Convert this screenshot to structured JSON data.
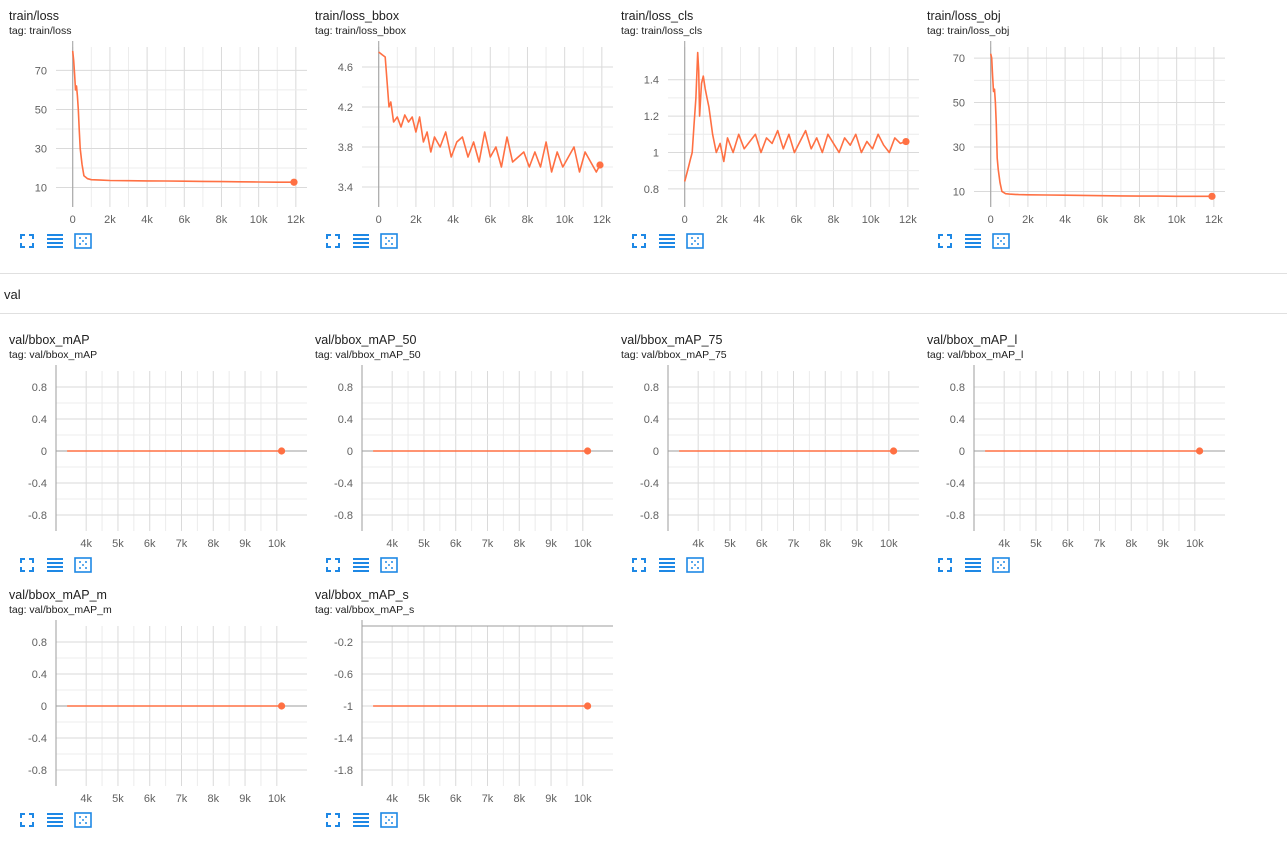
{
  "accent": "#ff7043",
  "toolbar_icons": [
    "fullscreen-icon",
    "data-table-icon",
    "fit-domain-icon"
  ],
  "groups": [
    {
      "title": "val"
    }
  ],
  "chart_data": [
    {
      "type": "line",
      "title": "train/loss",
      "tag": "tag: train/loss",
      "xlim": [
        -900,
        12600
      ],
      "ylim": [
        0,
        82
      ],
      "xticks": [
        0,
        2000,
        4000,
        6000,
        8000,
        10000,
        12000
      ],
      "xtick_labels": [
        "0",
        "2k",
        "4k",
        "6k",
        "8k",
        "10k",
        "12k"
      ],
      "yticks": [
        10,
        30,
        50,
        70
      ],
      "ytick_labels": [
        "10",
        "30",
        "50",
        "70"
      ],
      "grid": true,
      "legend": "none",
      "series": [
        {
          "x": [
            0,
            50,
            100,
            150,
            200,
            250,
            300,
            350,
            400,
            500,
            600,
            800,
            1000,
            1500,
            2000,
            3000,
            4000,
            5000,
            6000,
            7000,
            8000,
            9000,
            10000,
            11000,
            11500,
            11900
          ],
          "y": [
            80,
            75,
            68,
            60,
            62,
            57,
            50,
            40,
            30,
            22,
            16,
            14.5,
            14,
            13.8,
            13.6,
            13.5,
            13.4,
            13.3,
            13.2,
            13.1,
            13,
            12.9,
            12.8,
            12.7,
            12.7,
            12.7
          ],
          "last": [
            11900,
            12.7
          ]
        }
      ]
    },
    {
      "type": "line",
      "title": "train/loss_bbox",
      "tag": "tag: train/loss_bbox",
      "xlim": [
        -900,
        12600
      ],
      "ylim": [
        3.2,
        4.8
      ],
      "xticks": [
        0,
        2000,
        4000,
        6000,
        8000,
        10000,
        12000
      ],
      "xtick_labels": [
        "0",
        "2k",
        "4k",
        "6k",
        "8k",
        "10k",
        "12k"
      ],
      "yticks": [
        3.4,
        3.8,
        4.2,
        4.6
      ],
      "ytick_labels": [
        "3.4",
        "3.8",
        "4.2",
        "4.6"
      ],
      "grid": true,
      "legend": "none",
      "series": [
        {
          "x": [
            0,
            200,
            350,
            450,
            550,
            650,
            800,
            1000,
            1200,
            1400,
            1600,
            1800,
            2000,
            2200,
            2400,
            2600,
            2800,
            3000,
            3300,
            3600,
            3900,
            4200,
            4500,
            4800,
            5100,
            5400,
            5700,
            6000,
            6300,
            6600,
            6900,
            7200,
            7500,
            7800,
            8100,
            8400,
            8700,
            9000,
            9300,
            9600,
            9900,
            10200,
            10500,
            10800,
            11100,
            11400,
            11700,
            11900
          ],
          "y": [
            4.75,
            4.72,
            4.7,
            4.45,
            4.2,
            4.25,
            4.05,
            4.1,
            4.0,
            4.12,
            4.05,
            4.1,
            3.95,
            4.1,
            3.85,
            3.95,
            3.75,
            3.9,
            3.8,
            3.95,
            3.7,
            3.85,
            3.9,
            3.7,
            3.85,
            3.65,
            3.95,
            3.7,
            3.8,
            3.6,
            3.9,
            3.65,
            3.7,
            3.75,
            3.6,
            3.75,
            3.6,
            3.85,
            3.55,
            3.75,
            3.6,
            3.7,
            3.8,
            3.55,
            3.75,
            3.65,
            3.55,
            3.62
          ],
          "last": [
            11900,
            3.62
          ]
        }
      ]
    },
    {
      "type": "line",
      "title": "train/loss_cls",
      "tag": "tag: train/loss_cls",
      "xlim": [
        -900,
        12600
      ],
      "ylim": [
        0.7,
        1.58
      ],
      "xticks": [
        0,
        2000,
        4000,
        6000,
        8000,
        10000,
        12000
      ],
      "xtick_labels": [
        "0",
        "2k",
        "4k",
        "6k",
        "8k",
        "10k",
        "12k"
      ],
      "yticks": [
        0.8,
        1,
        1.2,
        1.4
      ],
      "ytick_labels": [
        "0.8",
        "1",
        "1.2",
        "1.4"
      ],
      "grid": true,
      "legend": "none",
      "series": [
        {
          "x": [
            0,
            100,
            200,
            300,
            400,
            500,
            600,
            700,
            750,
            800,
            900,
            1000,
            1100,
            1200,
            1300,
            1500,
            1700,
            1900,
            2100,
            2300,
            2600,
            2900,
            3200,
            3500,
            3800,
            4100,
            4400,
            4700,
            5000,
            5300,
            5600,
            5900,
            6200,
            6500,
            6800,
            7100,
            7400,
            7700,
            8000,
            8300,
            8600,
            8900,
            9200,
            9500,
            9800,
            10100,
            10400,
            10700,
            11000,
            11300,
            11600,
            11900
          ],
          "y": [
            0.84,
            0.88,
            0.92,
            0.96,
            1.0,
            1.15,
            1.3,
            1.55,
            1.45,
            1.2,
            1.38,
            1.42,
            1.35,
            1.3,
            1.25,
            1.1,
            1.0,
            1.05,
            0.95,
            1.08,
            1.0,
            1.1,
            1.02,
            1.06,
            1.1,
            1.0,
            1.08,
            1.05,
            1.12,
            1.02,
            1.1,
            1.0,
            1.06,
            1.12,
            1.02,
            1.08,
            1.0,
            1.1,
            1.05,
            1.0,
            1.08,
            1.04,
            1.1,
            1.0,
            1.06,
            1.02,
            1.1,
            1.04,
            1.0,
            1.08,
            1.05,
            1.06
          ],
          "last": [
            11900,
            1.06
          ]
        }
      ]
    },
    {
      "type": "line",
      "title": "train/loss_obj",
      "tag": "tag: train/loss_obj",
      "xlim": [
        -900,
        12600
      ],
      "ylim": [
        3,
        75
      ],
      "xticks": [
        0,
        2000,
        4000,
        6000,
        8000,
        10000,
        12000
      ],
      "xtick_labels": [
        "0",
        "2k",
        "4k",
        "6k",
        "8k",
        "10k",
        "12k"
      ],
      "yticks": [
        10,
        30,
        50,
        70
      ],
      "ytick_labels": [
        "10",
        "30",
        "50",
        "70"
      ],
      "grid": true,
      "legend": "none",
      "series": [
        {
          "x": [
            0,
            50,
            100,
            150,
            200,
            250,
            300,
            350,
            400,
            500,
            600,
            800,
            1000,
            1500,
            2000,
            3000,
            4000,
            5000,
            6000,
            7000,
            8000,
            9000,
            10000,
            11000,
            11500,
            11900
          ],
          "y": [
            72,
            70,
            62,
            55,
            56,
            50,
            40,
            25,
            20,
            14,
            10,
            9,
            8.8,
            8.6,
            8.5,
            8.4,
            8.3,
            8.2,
            8.1,
            8.0,
            7.9,
            7.9,
            7.8,
            7.8,
            7.8,
            7.8
          ],
          "last": [
            11900,
            7.8
          ]
        }
      ]
    },
    {
      "type": "line",
      "title": "val/bbox_mAP",
      "tag": "tag: val/bbox_mAP",
      "xlim": [
        3050,
        10950
      ],
      "ylim": [
        -1,
        1
      ],
      "xticks": [
        4000,
        5000,
        6000,
        7000,
        8000,
        9000,
        10000
      ],
      "xtick_labels": [
        "4k",
        "5k",
        "6k",
        "7k",
        "8k",
        "9k",
        "10k"
      ],
      "yticks": [
        0.8,
        0.4,
        0,
        -0.4,
        -0.8
      ],
      "ytick_labels": [
        "0.8",
        "0.4",
        "0",
        "-0.4",
        "-0.8"
      ],
      "zero_line": 0,
      "grid": true,
      "legend": "none",
      "series": [
        {
          "x": [
            3400,
            10150
          ],
          "y": [
            0,
            0
          ],
          "last": [
            10150,
            0
          ]
        }
      ]
    },
    {
      "type": "line",
      "title": "val/bbox_mAP_50",
      "tag": "tag: val/bbox_mAP_50",
      "xlim": [
        3050,
        10950
      ],
      "ylim": [
        -1,
        1
      ],
      "xticks": [
        4000,
        5000,
        6000,
        7000,
        8000,
        9000,
        10000
      ],
      "xtick_labels": [
        "4k",
        "5k",
        "6k",
        "7k",
        "8k",
        "9k",
        "10k"
      ],
      "yticks": [
        0.8,
        0.4,
        0,
        -0.4,
        -0.8
      ],
      "ytick_labels": [
        "0.8",
        "0.4",
        "0",
        "-0.4",
        "-0.8"
      ],
      "zero_line": 0,
      "grid": true,
      "legend": "none",
      "series": [
        {
          "x": [
            3400,
            10150
          ],
          "y": [
            0,
            0
          ],
          "last": [
            10150,
            0
          ]
        }
      ]
    },
    {
      "type": "line",
      "title": "val/bbox_mAP_75",
      "tag": "tag: val/bbox_mAP_75",
      "xlim": [
        3050,
        10950
      ],
      "ylim": [
        -1,
        1
      ],
      "xticks": [
        4000,
        5000,
        6000,
        7000,
        8000,
        9000,
        10000
      ],
      "xtick_labels": [
        "4k",
        "5k",
        "6k",
        "7k",
        "8k",
        "9k",
        "10k"
      ],
      "yticks": [
        0.8,
        0.4,
        0,
        -0.4,
        -0.8
      ],
      "ytick_labels": [
        "0.8",
        "0.4",
        "0",
        "-0.4",
        "-0.8"
      ],
      "zero_line": 0,
      "grid": true,
      "legend": "none",
      "series": [
        {
          "x": [
            3400,
            10150
          ],
          "y": [
            0,
            0
          ],
          "last": [
            10150,
            0
          ]
        }
      ]
    },
    {
      "type": "line",
      "title": "val/bbox_mAP_l",
      "tag": "tag: val/bbox_mAP_l",
      "xlim": [
        3050,
        10950
      ],
      "ylim": [
        -1,
        1
      ],
      "xticks": [
        4000,
        5000,
        6000,
        7000,
        8000,
        9000,
        10000
      ],
      "xtick_labels": [
        "4k",
        "5k",
        "6k",
        "7k",
        "8k",
        "9k",
        "10k"
      ],
      "yticks": [
        0.8,
        0.4,
        0,
        -0.4,
        -0.8
      ],
      "ytick_labels": [
        "0.8",
        "0.4",
        "0",
        "-0.4",
        "-0.8"
      ],
      "zero_line": 0,
      "grid": true,
      "legend": "none",
      "series": [
        {
          "x": [
            3400,
            10150
          ],
          "y": [
            0,
            0
          ],
          "last": [
            10150,
            0
          ]
        }
      ]
    },
    {
      "type": "line",
      "title": "val/bbox_mAP_m",
      "tag": "tag: val/bbox_mAP_m",
      "xlim": [
        3050,
        10950
      ],
      "ylim": [
        -1,
        1
      ],
      "xticks": [
        4000,
        5000,
        6000,
        7000,
        8000,
        9000,
        10000
      ],
      "xtick_labels": [
        "4k",
        "5k",
        "6k",
        "7k",
        "8k",
        "9k",
        "10k"
      ],
      "yticks": [
        0.8,
        0.4,
        0,
        -0.4,
        -0.8
      ],
      "ytick_labels": [
        "0.8",
        "0.4",
        "0",
        "-0.4",
        "-0.8"
      ],
      "zero_line": 0,
      "grid": true,
      "legend": "none",
      "series": [
        {
          "x": [
            3400,
            10150
          ],
          "y": [
            0,
            0
          ],
          "last": [
            10150,
            0
          ]
        }
      ]
    },
    {
      "type": "line",
      "title": "val/bbox_mAP_s",
      "tag": "tag: val/bbox_mAP_s",
      "xlim": [
        3050,
        10950
      ],
      "ylim": [
        -2,
        0
      ],
      "xticks": [
        4000,
        5000,
        6000,
        7000,
        8000,
        9000,
        10000
      ],
      "xtick_labels": [
        "4k",
        "5k",
        "6k",
        "7k",
        "8k",
        "9k",
        "10k"
      ],
      "yticks": [
        -0.2,
        -0.6,
        -1,
        -1.4,
        -1.8
      ],
      "ytick_labels": [
        "-0.2",
        "-0.6",
        "-1",
        "-1.4",
        "-1.8"
      ],
      "zero_line": 0,
      "grid": true,
      "legend": "none",
      "series": [
        {
          "x": [
            3400,
            10150
          ],
          "y": [
            -1,
            -1
          ],
          "last": [
            10150,
            -1
          ]
        }
      ]
    }
  ]
}
